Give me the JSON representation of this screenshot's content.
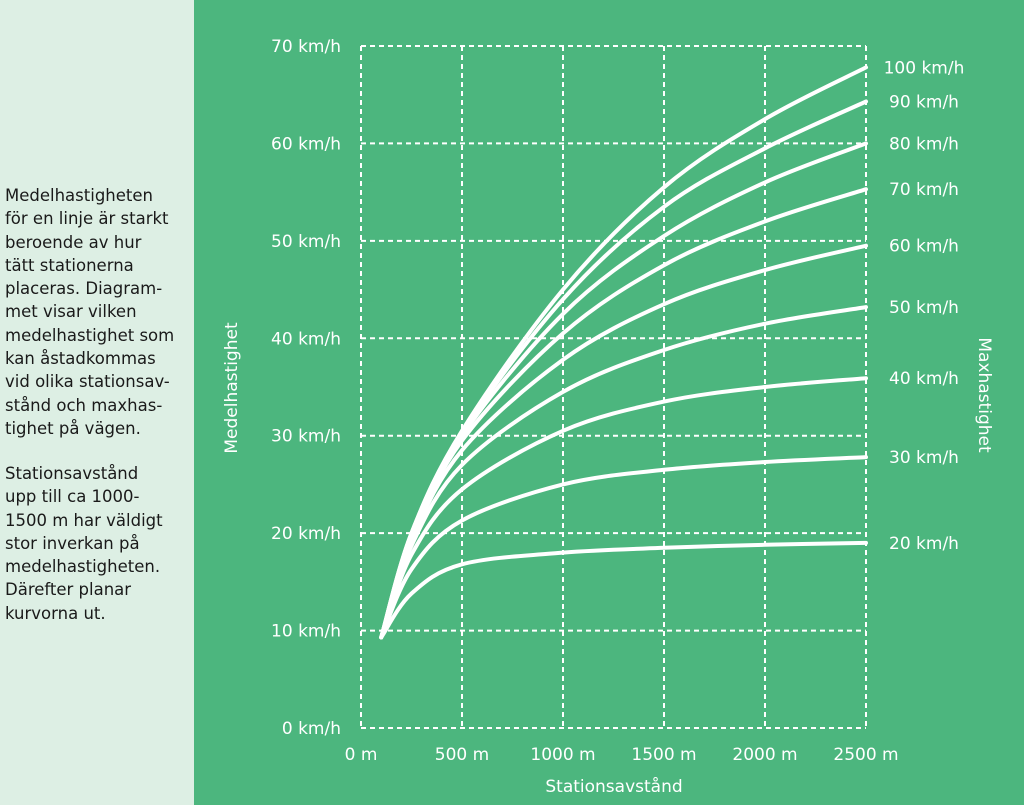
{
  "sidebar": {
    "paragraph1": "Medelhastigheten\nför en linje är starkt\nberoende av hur\ntätt stationerna\nplaceras. Diagram-\nmet visar vilken\nmedelhastighet som\nkan åstadkommas\nvid olika stationsav-\nstånd och maxhas-\ntighet på vägen.",
    "paragraph2": "Stationsavstånd\nupp till ca 1000-\n1500 m har väldigt\nstor inverkan på\nmedelhastigheten.\nDärefter planar\nkurvorna ut."
  },
  "colors": {
    "background": "#4cb67e",
    "sidebar": "#ddefe4",
    "lines": "#ffffff",
    "text": "#1a1a1a"
  },
  "chart_data": {
    "type": "line",
    "xlabel": "Stationsavstånd",
    "ylabel": "Medelhastighet",
    "y2label": "Maxhastighet",
    "xlim": [
      0,
      2500
    ],
    "ylim": [
      0,
      70
    ],
    "grid": true,
    "grid_style": "dashed",
    "x_ticks": [
      "0 m",
      "500 m",
      "1000 m",
      "1500 m",
      "2000 m",
      "2500 m"
    ],
    "x_tick_values": [
      0,
      500,
      1000,
      1500,
      2000,
      2500
    ],
    "y_ticks": [
      "0 km/h",
      "10 km/h",
      "20 km/h",
      "30 km/h",
      "40 km/h",
      "50 km/h",
      "60 km/h",
      "70 km/h"
    ],
    "y_tick_values": [
      0,
      10,
      20,
      30,
      40,
      50,
      60,
      70
    ],
    "x": [
      100,
      250,
      500,
      1000,
      1500,
      2000,
      2500
    ],
    "series": [
      {
        "name": "100 km/h",
        "values": [
          9.3,
          20.0,
          30.5,
          45.0,
          55.5,
          62.5,
          67.8
        ]
      },
      {
        "name": "90 km/h",
        "values": [
          9.3,
          20.0,
          30.3,
          44.0,
          53.5,
          59.5,
          64.3
        ]
      },
      {
        "name": "80 km/h",
        "values": [
          9.3,
          19.8,
          30.0,
          42.5,
          50.5,
          56.0,
          60.0
        ]
      },
      {
        "name": "70 km/h",
        "values": [
          9.3,
          19.5,
          29.5,
          40.5,
          47.5,
          52.0,
          55.3
        ]
      },
      {
        "name": "60 km/h",
        "values": [
          9.3,
          19.2,
          28.5,
          37.8,
          43.5,
          47.0,
          49.5
        ]
      },
      {
        "name": "50 km/h",
        "values": [
          9.3,
          18.7,
          27.0,
          34.5,
          38.8,
          41.5,
          43.2
        ]
      },
      {
        "name": "40 km/h",
        "values": [
          9.3,
          17.8,
          24.5,
          30.5,
          33.5,
          35.0,
          35.9
        ]
      },
      {
        "name": "30 km/h",
        "values": [
          9.3,
          16.3,
          21.3,
          25.0,
          26.5,
          27.3,
          27.8
        ]
      },
      {
        "name": "20 km/h",
        "values": [
          9.3,
          13.8,
          16.8,
          18.0,
          18.5,
          18.8,
          19.0
        ]
      }
    ]
  }
}
